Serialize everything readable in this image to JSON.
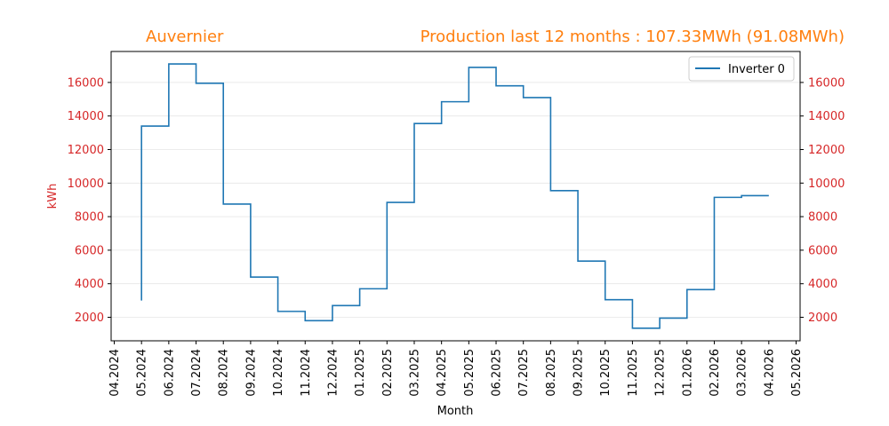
{
  "chart_data": {
    "type": "line",
    "step": "post",
    "title_left": "Auvernier",
    "title_right": "Production last 12 months : 107.33MWh (91.08MWh)",
    "xlabel": "Month",
    "ylabel": "kWh",
    "ylim": [
      650,
      17900
    ],
    "yticks": [
      2000,
      4000,
      6000,
      8000,
      10000,
      12000,
      14000,
      16000
    ],
    "ytick_labels": [
      "2000",
      "4000",
      "6000",
      "8000",
      "10000",
      "12000",
      "14000",
      "16000"
    ],
    "x_tick_labels": [
      "04.2024",
      "05.2024",
      "06.2024",
      "07.2024",
      "08.2024",
      "09.2024",
      "10.2024",
      "11.2024",
      "12.2024",
      "01.2025",
      "02.2025",
      "03.2025",
      "04.2025",
      "05.2025",
      "06.2025",
      "07.2025",
      "08.2025",
      "09.2025",
      "10.2025",
      "11.2025",
      "12.2025",
      "01.2026",
      "02.2026",
      "03.2026",
      "04.2026",
      "05.2026"
    ],
    "grid": "y",
    "legend_position": "top-right",
    "series": [
      {
        "name": "Inverter 0",
        "color": "#1f77b4",
        "x": [
          "05.2024",
          "05.2024",
          "06.2024",
          "07.2024",
          "08.2024",
          "09.2024",
          "10.2024",
          "11.2024",
          "12.2024",
          "01.2025",
          "02.2025",
          "03.2025",
          "04.2025",
          "05.2025",
          "06.2025",
          "07.2025",
          "08.2025",
          "09.2025",
          "10.2025",
          "11.2025",
          "12.2025",
          "01.2026",
          "02.2026",
          "03.2026",
          "04.2026"
        ],
        "values": [
          3000,
          13400,
          17100,
          15950,
          8750,
          4400,
          2350,
          1800,
          2700,
          3700,
          8850,
          13550,
          14850,
          16900,
          15800,
          15100,
          9550,
          5350,
          3050,
          1350,
          1950,
          3650,
          9150,
          9250,
          9250
        ]
      }
    ]
  }
}
